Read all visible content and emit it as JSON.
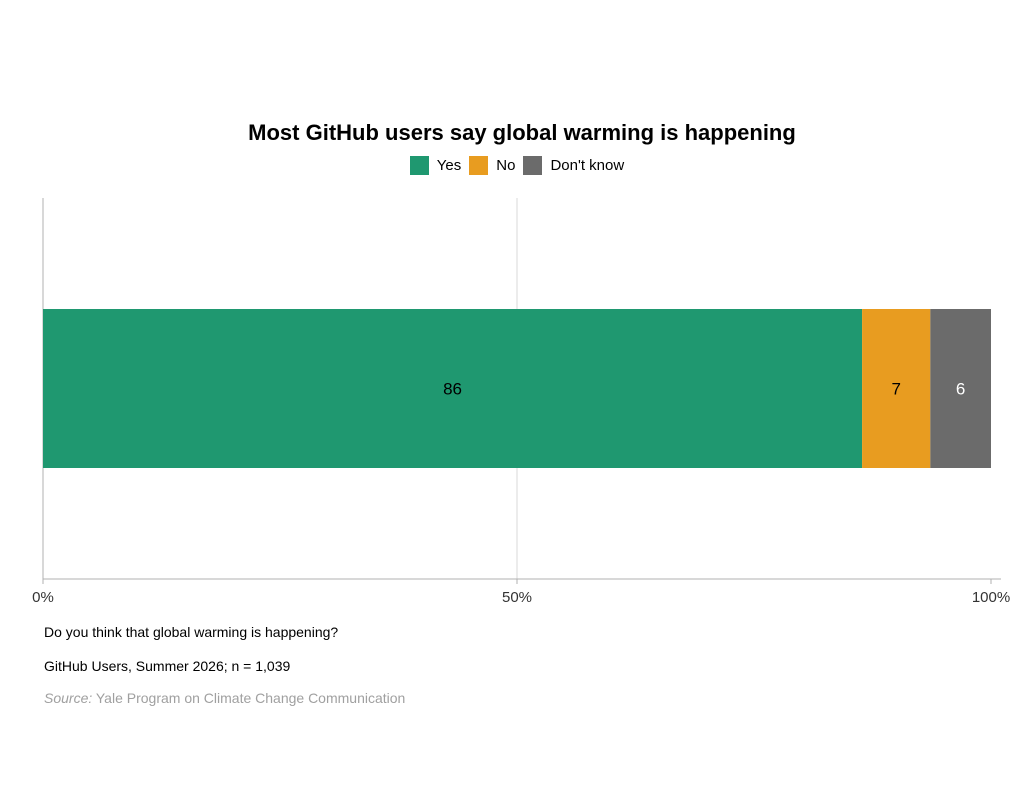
{
  "chart_data": {
    "type": "bar",
    "orientation": "horizontal",
    "stacked": true,
    "title": "Most GitHub users say global warming is happening",
    "series": [
      {
        "name": "Yes",
        "color": "#1f9870",
        "values": [
          86.4
        ]
      },
      {
        "name": "No",
        "color": "#e89c20",
        "values": [
          7.2
        ]
      },
      {
        "name": "Don't know",
        "color": "#6b6b6b",
        "values": [
          6.4
        ]
      }
    ],
    "data_labels": [
      "86",
      "7",
      "6"
    ],
    "data_label_colors": [
      "#000000",
      "#000000",
      "#ffffff"
    ],
    "xlim": [
      0,
      100
    ],
    "x_ticks": [
      0,
      50,
      100
    ],
    "x_tick_labels": [
      "0%",
      "50%",
      "100%"
    ],
    "grid": true,
    "legend_position": "top"
  },
  "notes": {
    "question": "Do you think that global warming is happening?",
    "sample": "GitHub Users, Summer 2026; n = 1,039",
    "source_label": "Source:",
    "source_text": " Yale Program on Climate Change Communication"
  }
}
